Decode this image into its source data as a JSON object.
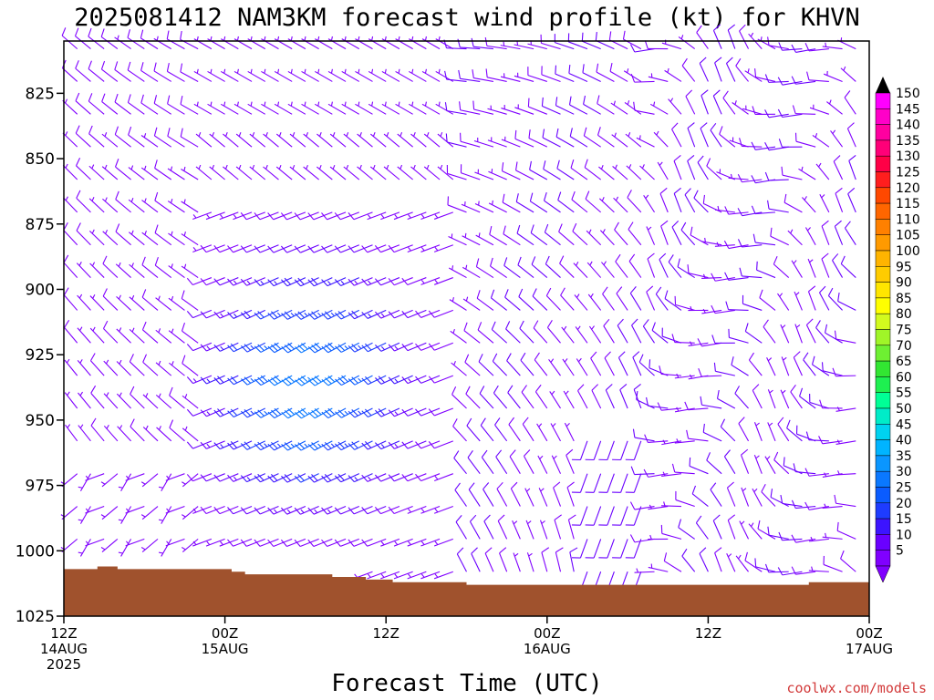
{
  "title": "2025081412 NAM3KM forecast wind profile (kt) for KHVN",
  "xlabel": "Forecast Time (UTC)",
  "credit": "coolwx.com/models",
  "colors": {
    "ground": "#a0522d",
    "barb_default": "#7a2bf0"
  },
  "chart_data": {
    "type": "wind-barb time-height cross section",
    "x_unit": "hours from 2025-08-14 12Z",
    "x_range": [
      0,
      60
    ],
    "y_unit": "hPa",
    "y_range": [
      805,
      1025
    ],
    "x_ticks": [
      {
        "hour": 0,
        "lines": [
          "12Z",
          "14AUG",
          "2025"
        ]
      },
      {
        "hour": 12,
        "lines": [
          "00Z",
          "15AUG"
        ]
      },
      {
        "hour": 24,
        "lines": [
          "12Z"
        ]
      },
      {
        "hour": 36,
        "lines": [
          "00Z",
          "16AUG"
        ]
      },
      {
        "hour": 48,
        "lines": [
          "12Z"
        ]
      },
      {
        "hour": 60,
        "lines": [
          "00Z",
          "17AUG"
        ]
      }
    ],
    "y_ticks": [
      825,
      850,
      875,
      900,
      925,
      950,
      975,
      1000,
      1025
    ],
    "surface_pressure_hpa": [
      [
        0,
        1007
      ],
      [
        1.5,
        1007
      ],
      [
        2.5,
        1006
      ],
      [
        3,
        1006
      ],
      [
        4,
        1007
      ],
      [
        11.5,
        1007
      ],
      [
        12.5,
        1008
      ],
      [
        13.5,
        1009
      ],
      [
        19,
        1009
      ],
      [
        20,
        1010
      ],
      [
        22,
        1010
      ],
      [
        22.5,
        1011
      ],
      [
        24.5,
        1012
      ],
      [
        29.5,
        1012
      ],
      [
        30,
        1013
      ],
      [
        55,
        1013
      ],
      [
        55.5,
        1012
      ],
      [
        59,
        1012
      ],
      [
        60,
        1011
      ]
    ],
    "colorbar": {
      "unit": "kt",
      "levels": [
        5,
        10,
        15,
        20,
        25,
        30,
        35,
        40,
        45,
        50,
        55,
        60,
        65,
        70,
        75,
        80,
        85,
        90,
        95,
        100,
        105,
        110,
        115,
        120,
        125,
        130,
        135,
        140,
        145,
        150
      ],
      "colors": [
        "#8000ff",
        "#6a00ff",
        "#3c14ff",
        "#1e3cff",
        "#0a5cff",
        "#0a78ff",
        "#0a96ff",
        "#00b4ff",
        "#00d2f0",
        "#00ecc8",
        "#00ff96",
        "#1ef050",
        "#32e632",
        "#6ef032",
        "#a0f528",
        "#d2fa1e",
        "#ffff00",
        "#ffe600",
        "#ffcc00",
        "#ffb400",
        "#ff9a00",
        "#ff8000",
        "#ff6600",
        "#ff4800",
        "#ff1e1e",
        "#ff0046",
        "#ff0078",
        "#ff00a0",
        "#ff00c8",
        "#ff00ff"
      ]
    },
    "wind_field_description_keypoints": [
      {
        "hour": 0,
        "p": 900,
        "dir": 330,
        "kt": 7
      },
      {
        "hour": 12,
        "p": 900,
        "dir": 270,
        "kt": 6
      },
      {
        "hour": 18,
        "p": 920,
        "dir": 240,
        "kt": 20
      },
      {
        "hour": 24,
        "p": 960,
        "dir": 250,
        "kt": 30
      },
      {
        "hour": 36,
        "p": 900,
        "dir": 320,
        "kt": 6
      },
      {
        "hour": 48,
        "p": 960,
        "dir": 300,
        "kt": 10
      }
    ]
  }
}
